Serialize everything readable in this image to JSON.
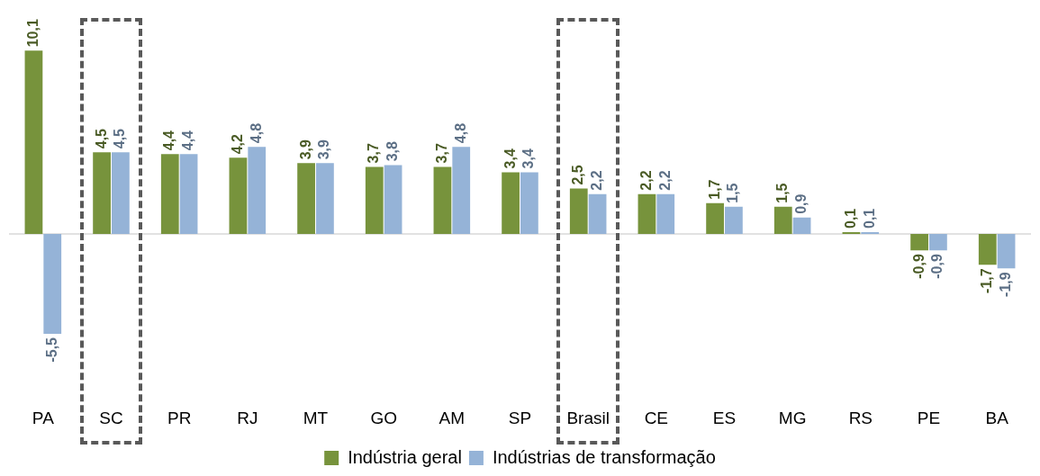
{
  "chart_data": {
    "type": "bar",
    "categories": [
      "PA",
      "SC",
      "PR",
      "RJ",
      "MT",
      "GO",
      "AM",
      "SP",
      "Brasil",
      "CE",
      "ES",
      "MG",
      "RS",
      "PE",
      "BA"
    ],
    "series": [
      {
        "name": "Indústria geral",
        "color": "#77933c",
        "values": [
          10.1,
          4.5,
          4.4,
          4.2,
          3.9,
          3.7,
          3.7,
          3.4,
          2.5,
          2.2,
          1.7,
          1.5,
          0.1,
          -0.9,
          -1.7
        ],
        "value_labels": [
          "10,1",
          "4,5",
          "4,4",
          "4,2",
          "3,9",
          "3,7",
          "3,7",
          "3,4",
          "2,5",
          "2,2",
          "1,7",
          "1,5",
          "0,1",
          "-0,9",
          "-1,7"
        ]
      },
      {
        "name": "Indústrias de transformação",
        "color": "#95b3d7",
        "values": [
          -5.5,
          4.5,
          4.4,
          4.8,
          3.9,
          3.8,
          4.8,
          3.4,
          2.2,
          2.2,
          1.5,
          0.9,
          0.1,
          -0.9,
          -1.9
        ],
        "value_labels": [
          "-5,5",
          "4,5",
          "4,4",
          "4,8",
          "3,9",
          "3,8",
          "4,8",
          "3,4",
          "2,2",
          "2,2",
          "1,5",
          "0,9",
          "0,1",
          "-0,9",
          "-1,9"
        ]
      }
    ],
    "legend": "bottom",
    "grid": false
  }
}
